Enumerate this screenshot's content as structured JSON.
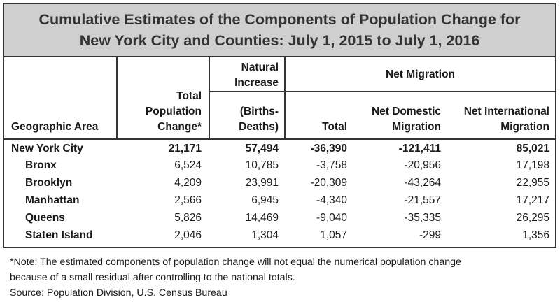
{
  "title": {
    "line1": "Cumulative Estimates of the Components of Population Change for",
    "line2": "New York City and Counties: July 1, 2015 to July 1, 2016"
  },
  "headers": {
    "geo": "Geographic Area",
    "total_change": [
      "Total",
      "Population",
      "Change*"
    ],
    "natural_top": [
      "Natural",
      "Increase"
    ],
    "natural_bottom": [
      "(Births-",
      "Deaths)"
    ],
    "net_migration": "Net Migration",
    "mig_total": "Total",
    "net_domestic": [
      "Net Domestic",
      "Migration"
    ],
    "net_international": [
      "Net International",
      "Migration"
    ]
  },
  "rows": [
    {
      "area": "New York City",
      "total_change": "21,171",
      "natural": "57,494",
      "mig_total": "-36,390",
      "domestic": "-121,411",
      "international": "85,021"
    },
    {
      "area": "Bronx",
      "total_change": "6,524",
      "natural": "10,785",
      "mig_total": "-3,758",
      "domestic": "-20,956",
      "international": "17,198"
    },
    {
      "area": "Brooklyn",
      "total_change": "4,209",
      "natural": "23,991",
      "mig_total": "-20,309",
      "domestic": "-43,264",
      "international": "22,955"
    },
    {
      "area": "Manhattan",
      "total_change": "2,566",
      "natural": "6,945",
      "mig_total": "-4,340",
      "domestic": "-21,557",
      "international": "17,217"
    },
    {
      "area": "Queens",
      "total_change": "5,826",
      "natural": "14,469",
      "mig_total": "-9,040",
      "domestic": "-35,335",
      "international": "26,295"
    },
    {
      "area": "Staten Island",
      "total_change": "2,046",
      "natural": "1,304",
      "mig_total": "1,057",
      "domestic": "-299",
      "international": "1,356"
    }
  ],
  "notes": {
    "line1": "*Note: The estimated components of population change will not equal the numerical population change",
    "line2": "because of a small residual after controlling to the national totals.",
    "source": "Source: Population Division, U.S. Census Bureau"
  }
}
